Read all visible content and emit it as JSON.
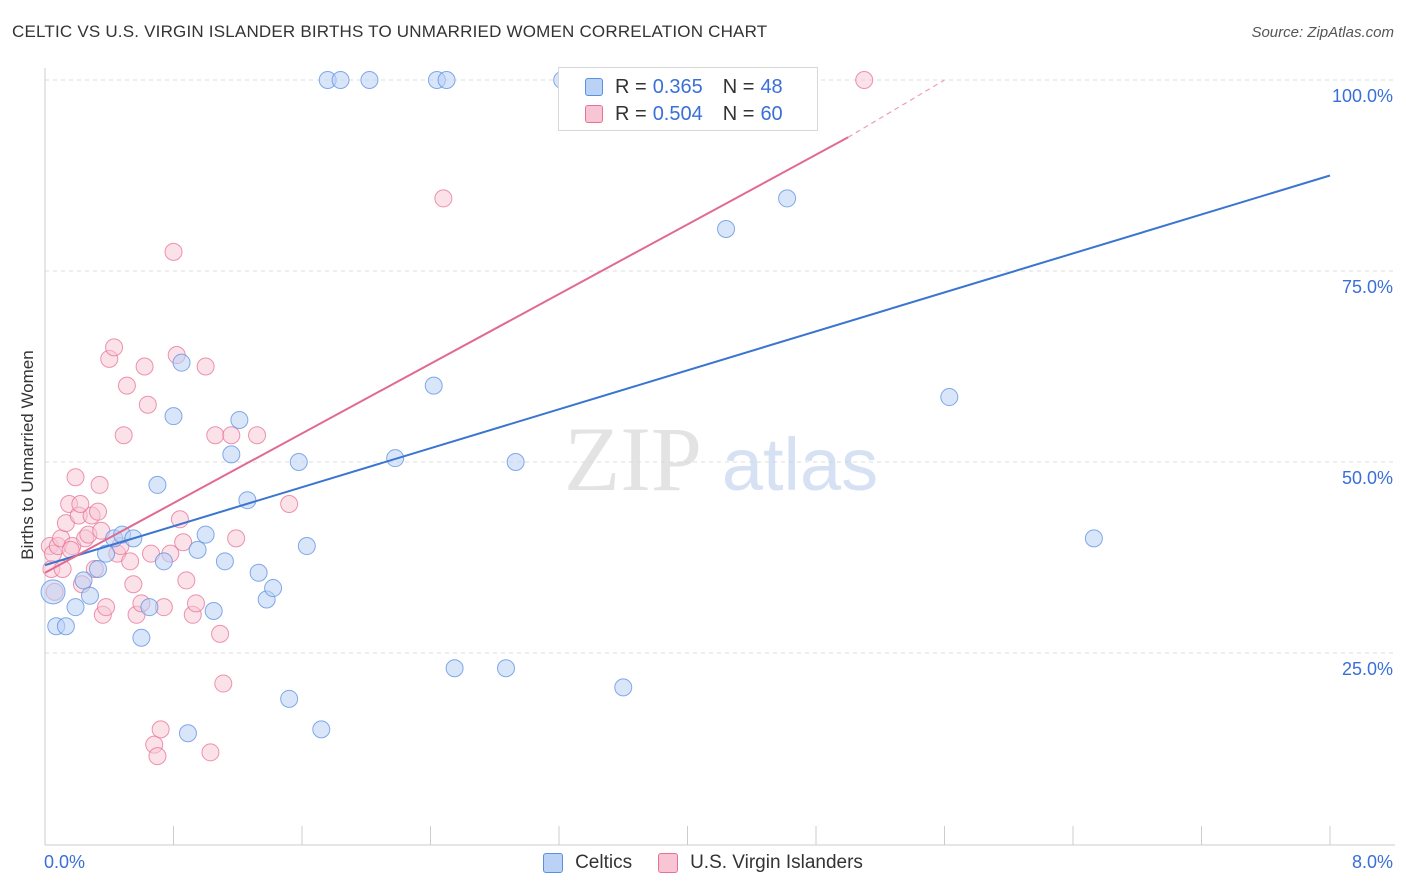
{
  "header": {
    "title": "CELTIC VS U.S. VIRGIN ISLANDER BIRTHS TO UNMARRIED WOMEN CORRELATION CHART",
    "source": "Source: ZipAtlas.com"
  },
  "watermark": {
    "zip": "ZIP",
    "atlas": "atlas"
  },
  "legend": {
    "r_label": "R =",
    "n_label": "N =",
    "celtics": {
      "r": "0.365",
      "n": "48",
      "color": "#5b8fe0",
      "fill": "#b9d2f5"
    },
    "virgin": {
      "r": "0.504",
      "n": "60",
      "color": "#e87096",
      "fill": "#f7c5d4"
    }
  },
  "bottom_legend": {
    "celtics": "Celtics",
    "virgin": "U.S. Virgin Islanders"
  },
  "chart_data": {
    "type": "scatter",
    "title": "CELTIC VS U.S. VIRGIN ISLANDER BIRTHS TO UNMARRIED WOMEN CORRELATION CHART",
    "xlabel": "",
    "ylabel": "Births to Unmarried Women",
    "xlim": [
      0,
      8
    ],
    "ylim": [
      0,
      100
    ],
    "x_ticks": [
      "0.0%",
      "8.0%"
    ],
    "y_ticks": [
      "100.0%",
      "75.0%",
      "50.0%",
      "25.0%"
    ],
    "grid": true,
    "legend_position": "top-center",
    "series": [
      {
        "name": "Celtics",
        "color": "#5b8fe0",
        "r": 0.365,
        "n": 48,
        "trend": {
          "x": [
            0,
            8
          ],
          "y": [
            36.5,
            87.5
          ],
          "dashed_after": null
        },
        "points": [
          [
            0.05,
            33
          ],
          [
            0.07,
            28.5
          ],
          [
            0.13,
            28.5
          ],
          [
            0.19,
            31
          ],
          [
            0.24,
            34.5
          ],
          [
            0.28,
            32.5
          ],
          [
            0.33,
            36
          ],
          [
            0.38,
            38
          ],
          [
            0.43,
            40
          ],
          [
            0.48,
            40.5
          ],
          [
            0.55,
            40
          ],
          [
            0.6,
            27
          ],
          [
            0.65,
            31
          ],
          [
            0.7,
            47
          ],
          [
            0.74,
            37
          ],
          [
            0.8,
            56
          ],
          [
            0.85,
            63
          ],
          [
            0.89,
            14.5
          ],
          [
            0.95,
            38.5
          ],
          [
            1.0,
            40.5
          ],
          [
            1.05,
            30.5
          ],
          [
            1.12,
            37
          ],
          [
            1.16,
            51
          ],
          [
            1.21,
            55.5
          ],
          [
            1.26,
            45
          ],
          [
            1.33,
            35.5
          ],
          [
            1.38,
            32
          ],
          [
            1.42,
            33.5
          ],
          [
            1.52,
            19
          ],
          [
            1.58,
            50
          ],
          [
            1.63,
            39
          ],
          [
            1.72,
            15
          ],
          [
            1.76,
            100
          ],
          [
            1.84,
            100
          ],
          [
            2.02,
            100
          ],
          [
            2.18,
            50.5
          ],
          [
            2.42,
            60
          ],
          [
            2.44,
            100
          ],
          [
            2.5,
            100
          ],
          [
            2.55,
            23
          ],
          [
            2.87,
            23
          ],
          [
            2.93,
            50
          ],
          [
            3.22,
            100
          ],
          [
            3.6,
            20.5
          ],
          [
            4.24,
            80.5
          ],
          [
            4.62,
            84.5
          ],
          [
            5.63,
            58.5
          ],
          [
            6.53,
            40
          ]
        ]
      },
      {
        "name": "U.S. Virgin Islanders",
        "color": "#e87096",
        "r": 0.504,
        "n": 60,
        "trend": {
          "x": [
            0,
            5.0
          ],
          "y": [
            35.5,
            92.5
          ],
          "dashed_x": [
            5.0,
            5.6
          ],
          "dashed_y": [
            92.5,
            100
          ]
        },
        "points": [
          [
            0.03,
            39
          ],
          [
            0.04,
            36
          ],
          [
            0.05,
            38
          ],
          [
            0.06,
            33
          ],
          [
            0.08,
            39
          ],
          [
            0.1,
            40
          ],
          [
            0.11,
            36
          ],
          [
            0.13,
            42
          ],
          [
            0.15,
            44.5
          ],
          [
            0.17,
            39
          ],
          [
            0.19,
            48
          ],
          [
            0.21,
            43
          ],
          [
            0.23,
            34
          ],
          [
            0.25,
            40
          ],
          [
            0.27,
            40.5
          ],
          [
            0.29,
            43
          ],
          [
            0.31,
            36
          ],
          [
            0.33,
            43.5
          ],
          [
            0.34,
            47
          ],
          [
            0.36,
            30
          ],
          [
            0.38,
            31
          ],
          [
            0.4,
            63.5
          ],
          [
            0.43,
            65
          ],
          [
            0.45,
            38
          ],
          [
            0.47,
            39
          ],
          [
            0.49,
            53.5
          ],
          [
            0.51,
            60
          ],
          [
            0.53,
            37
          ],
          [
            0.55,
            34
          ],
          [
            0.57,
            30
          ],
          [
            0.6,
            31.5
          ],
          [
            0.62,
            62.5
          ],
          [
            0.64,
            57.5
          ],
          [
            0.66,
            38
          ],
          [
            0.68,
            13
          ],
          [
            0.7,
            11.5
          ],
          [
            0.72,
            15
          ],
          [
            0.74,
            31
          ],
          [
            0.78,
            38
          ],
          [
            0.8,
            77.5
          ],
          [
            0.82,
            64
          ],
          [
            0.84,
            42.5
          ],
          [
            0.86,
            39.5
          ],
          [
            0.88,
            34.5
          ],
          [
            0.92,
            30
          ],
          [
            0.94,
            31.5
          ],
          [
            1.0,
            62.5
          ],
          [
            1.03,
            12
          ],
          [
            1.06,
            53.5
          ],
          [
            1.09,
            27.5
          ],
          [
            1.11,
            21
          ],
          [
            1.16,
            53.5
          ],
          [
            1.19,
            40
          ],
          [
            1.32,
            53.5
          ],
          [
            1.52,
            44.5
          ],
          [
            2.48,
            84.5
          ],
          [
            5.1,
            100
          ],
          [
            0.22,
            44.5
          ],
          [
            0.35,
            41
          ],
          [
            0.16,
            38.5
          ]
        ]
      }
    ]
  }
}
